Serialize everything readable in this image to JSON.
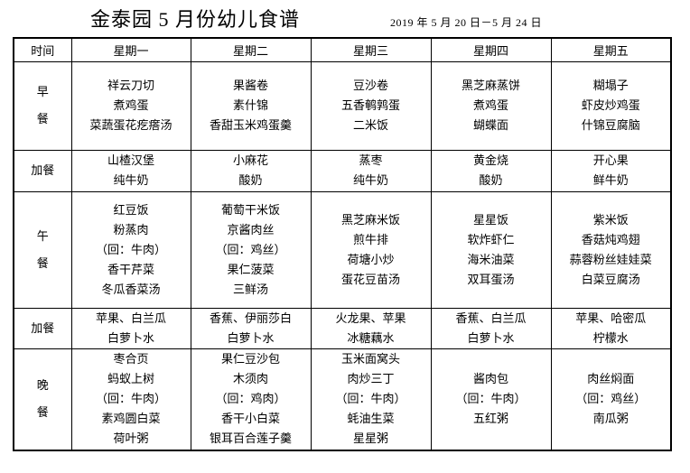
{
  "header": {
    "title": "金泰园 5 月份幼儿食谱",
    "date_range": "2019 年 5 月 20 日－5 月 24 日"
  },
  "table": {
    "time_header": "时间",
    "day_headers": [
      "星期一",
      "星期二",
      "星期三",
      "星期四",
      "星期五"
    ],
    "rows": [
      {
        "key": "breakfast",
        "label": "早餐",
        "vertical": true,
        "cells": [
          [
            "祥云刀切",
            "煮鸡蛋",
            "菜蔬蛋花疙瘩汤"
          ],
          [
            "果酱卷",
            "素什锦",
            "香甜玉米鸡蛋羹"
          ],
          [
            "豆沙卷",
            "五香鹌鹑蛋",
            "二米饭"
          ],
          [
            "黑芝麻蒸饼",
            "煮鸡蛋",
            "蝴蝶面"
          ],
          [
            "糊塌子",
            "虾皮炒鸡蛋",
            "什锦豆腐脑"
          ]
        ]
      },
      {
        "key": "morning-snack",
        "label": "加餐",
        "vertical": false,
        "cells": [
          [
            "山楂汉堡",
            "纯牛奶"
          ],
          [
            "小麻花",
            "酸奶"
          ],
          [
            "蒸枣",
            "纯牛奶"
          ],
          [
            "黄金烧",
            "酸奶"
          ],
          [
            "开心果",
            "鲜牛奶"
          ]
        ]
      },
      {
        "key": "lunch",
        "label": "午餐",
        "vertical": true,
        "cells": [
          [
            "红豆饭",
            "粉蒸肉",
            "（回：牛肉）",
            "香干芹菜",
            "冬瓜香菜汤"
          ],
          [
            "葡萄干米饭",
            "京酱肉丝",
            "（回：鸡丝）",
            "果仁菠菜",
            "三鲜汤"
          ],
          [
            "黑芝麻米饭",
            "煎牛排",
            "荷塘小炒",
            "蛋花豆苗汤"
          ],
          [
            "星星饭",
            "软炸虾仁",
            "海米油菜",
            "双耳蛋汤"
          ],
          [
            "紫米饭",
            "香菇炖鸡翅",
            "蒜蓉粉丝娃娃菜",
            "白菜豆腐汤"
          ]
        ]
      },
      {
        "key": "afternoon-snack",
        "label": "加餐",
        "vertical": false,
        "cells": [
          [
            "苹果、白兰瓜",
            "白萝卜水"
          ],
          [
            "香蕉、伊丽莎白",
            "白萝卜水"
          ],
          [
            "火龙果、苹果",
            "冰糖藕水"
          ],
          [
            "香蕉、白兰瓜",
            "白萝卜水"
          ],
          [
            "苹果、哈密瓜",
            "柠檬水"
          ]
        ]
      },
      {
        "key": "dinner",
        "label": "晚餐",
        "vertical": true,
        "cells": [
          [
            "枣合页",
            "蚂蚁上树",
            "（回：牛肉）",
            "素鸡圆白菜",
            "荷叶粥"
          ],
          [
            "果仁豆沙包",
            "木须肉",
            "（回：鸡肉）",
            "香干小白菜",
            "银耳百合莲子羹"
          ],
          [
            "玉米面窝头",
            "肉炒三丁",
            "（回：牛肉）",
            "蚝油生菜",
            "星星粥"
          ],
          [
            "酱肉包",
            "（回：牛肉）",
            "五红粥"
          ],
          [
            "肉丝焖面",
            "（回：鸡丝）",
            "南瓜粥"
          ]
        ]
      }
    ]
  }
}
